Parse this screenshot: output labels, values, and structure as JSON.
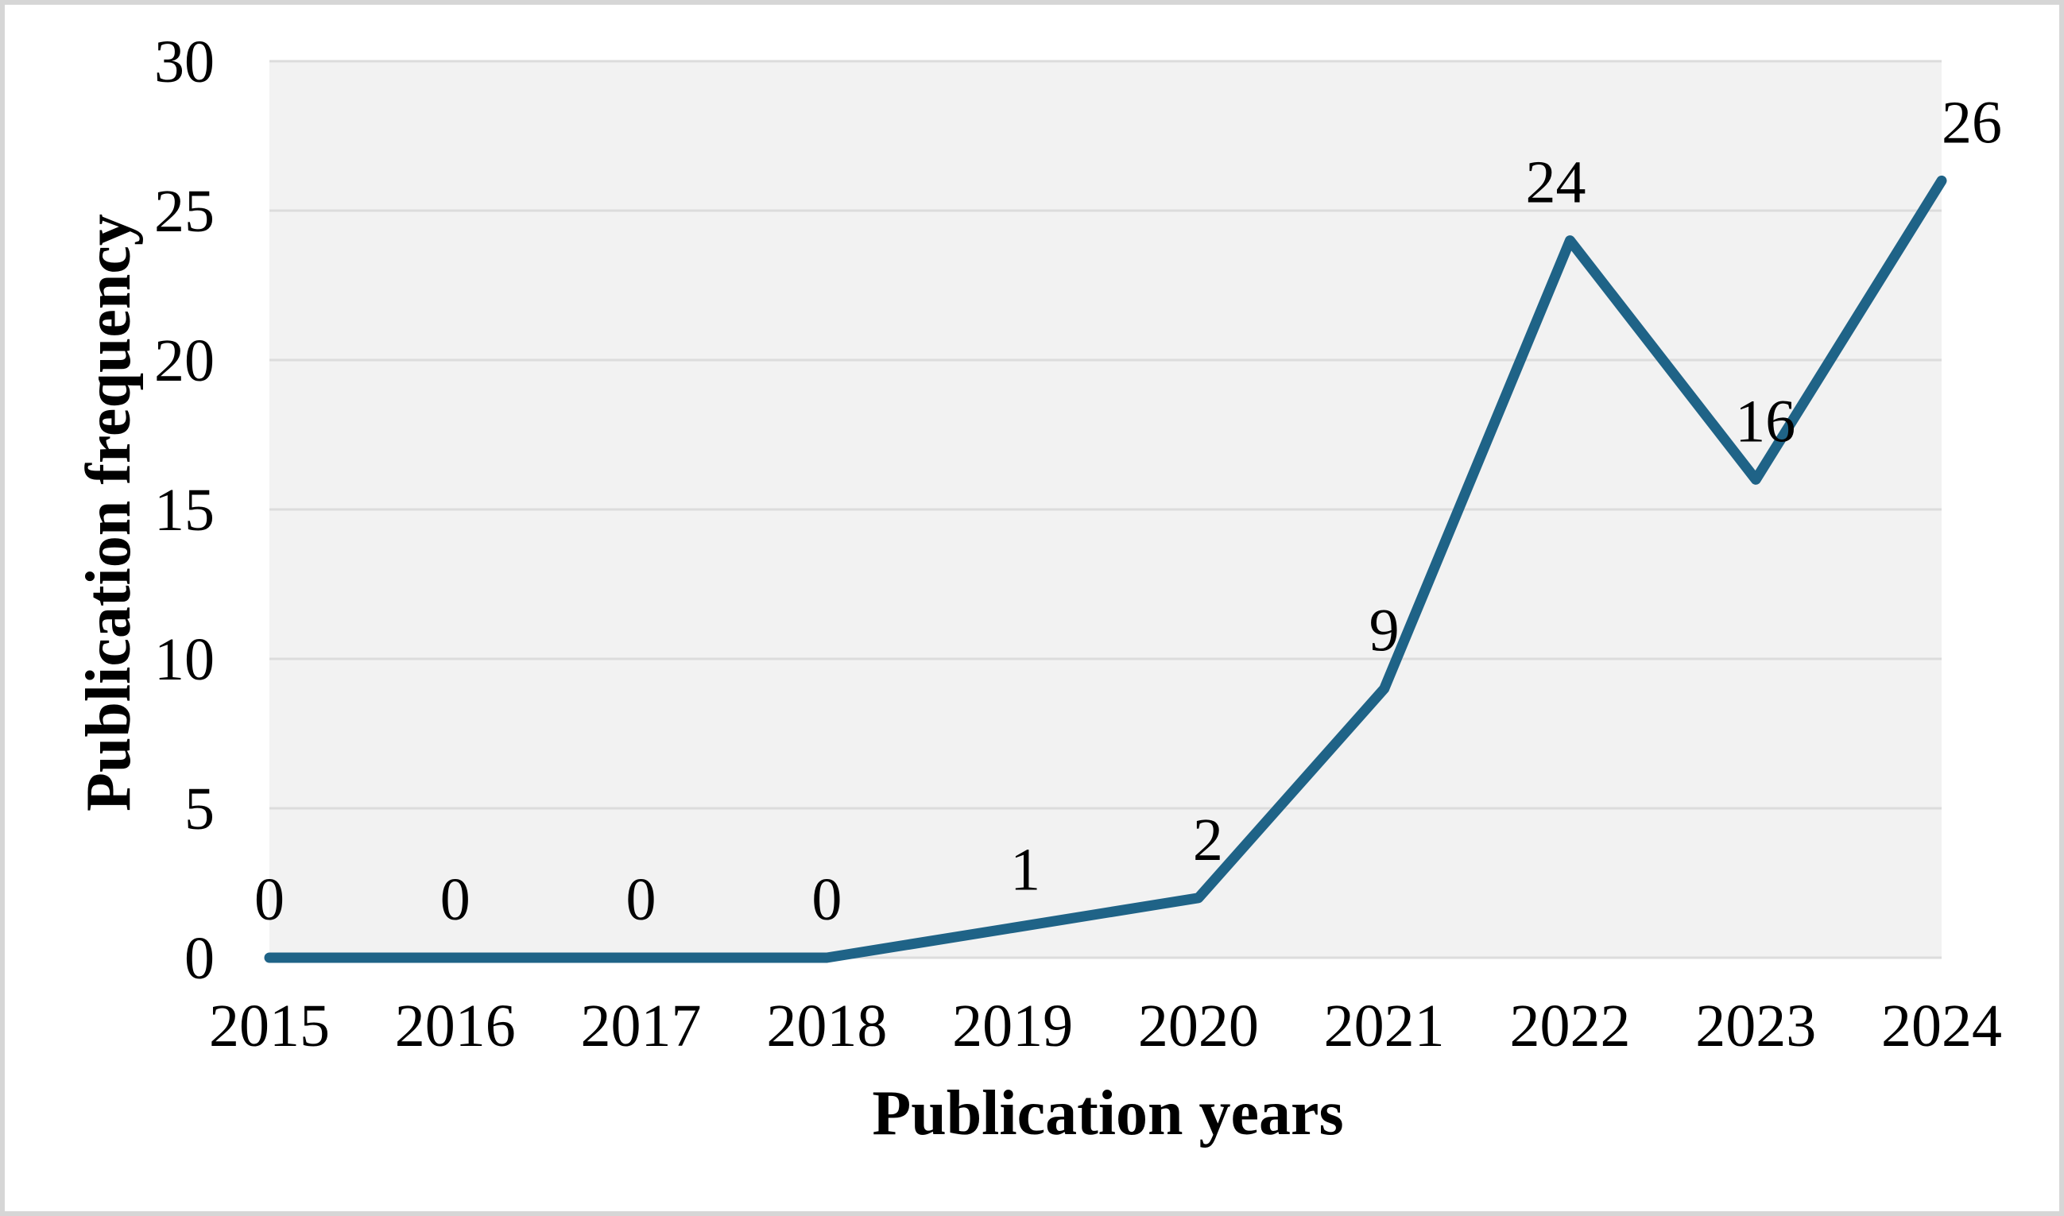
{
  "figure": {
    "background_color": "#FFFFFF",
    "border_color": "#D6D6D6"
  },
  "chart_data": {
    "type": "line",
    "title": "",
    "xlabel": "Publication years",
    "ylabel": "Publication frequency",
    "categories": [
      "2015",
      "2016",
      "2017",
      "2018",
      "2019",
      "2020",
      "2021",
      "2022",
      "2023",
      "2024"
    ],
    "series": [
      {
        "name": "Publication frequency",
        "values": [
          0,
          0,
          0,
          0,
          1,
          2,
          9,
          24,
          16,
          26
        ],
        "color": "#1F6387"
      }
    ],
    "data_labels": [
      "0",
      "0",
      "0",
      "0",
      "1",
      "2",
      "9",
      "24",
      "16",
      "26"
    ],
    "ylim": [
      0,
      30
    ],
    "yticks": [
      0,
      5,
      10,
      15,
      20,
      25,
      30
    ],
    "grid": true,
    "legend": false,
    "plot_background": "#F2F2F2",
    "gridline_color": "#DCDCDC",
    "text_color": "#000000"
  }
}
